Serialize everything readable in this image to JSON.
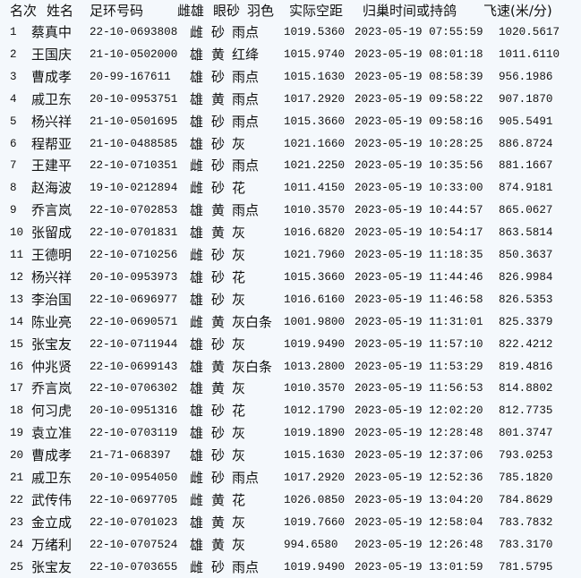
{
  "headers": {
    "rank": "名次",
    "name": "姓名",
    "ring": "足环号码",
    "sex": "雌雄",
    "eye": "眼砂",
    "color": "羽色",
    "distance": "实际空距",
    "time": "归巢时间或持鸽",
    "speed": "飞速(米/分)"
  },
  "rows": [
    [
      "1",
      "蔡真中",
      "22-10-0693808",
      "雌",
      "砂",
      "雨点",
      "1019.5360",
      "2023-05-19 07:55:59",
      "1020.5617"
    ],
    [
      "2",
      "王国庆",
      "21-10-0502000",
      "雄",
      "黄",
      "红绛",
      "1015.9740",
      "2023-05-19 08:01:18",
      "1011.6110"
    ],
    [
      "3",
      "曹成孝",
      "20-99-167611",
      "雄",
      "砂",
      "雨点",
      "1015.1630",
      "2023-05-19 08:58:39",
      "956.1986"
    ],
    [
      "4",
      "戚卫东",
      "20-10-0953751",
      "雄",
      "黄",
      "雨点",
      "1017.2920",
      "2023-05-19 09:58:22",
      "907.1870"
    ],
    [
      "5",
      "杨兴祥",
      "21-10-0501695",
      "雄",
      "砂",
      "雨点",
      "1015.3660",
      "2023-05-19 09:58:16",
      "905.5491"
    ],
    [
      "6",
      "程帮亚",
      "21-10-0488585",
      "雄",
      "砂",
      "灰",
      "1021.1660",
      "2023-05-19 10:28:25",
      "886.8724"
    ],
    [
      "7",
      "王建平",
      "22-10-0710351",
      "雌",
      "砂",
      "雨点",
      "1021.2250",
      "2023-05-19 10:35:56",
      "881.1667"
    ],
    [
      "8",
      "赵海波",
      "19-10-0212894",
      "雌",
      "砂",
      "花",
      "1011.4150",
      "2023-05-19 10:33:00",
      "874.9181"
    ],
    [
      "9",
      "乔言岚",
      "22-10-0702853",
      "雄",
      "黄",
      "雨点",
      "1010.3570",
      "2023-05-19 10:44:57",
      "865.0627"
    ],
    [
      "10",
      "张留成",
      "22-10-0701831",
      "雄",
      "黄",
      "灰",
      "1016.6820",
      "2023-05-19 10:54:17",
      "863.5814"
    ],
    [
      "11",
      "王德明",
      "22-10-0710256",
      "雌",
      "砂",
      "灰",
      "1021.7960",
      "2023-05-19 11:18:35",
      "850.3637"
    ],
    [
      "12",
      "杨兴祥",
      "20-10-0953973",
      "雄",
      "砂",
      "花",
      "1015.3660",
      "2023-05-19 11:44:46",
      "826.9984"
    ],
    [
      "13",
      "李治国",
      "22-10-0696977",
      "雄",
      "砂",
      "灰",
      "1016.6160",
      "2023-05-19 11:46:58",
      "826.5353"
    ],
    [
      "14",
      "陈业亮",
      "22-10-0690571",
      "雌",
      "黄",
      "灰白条",
      "1001.9800",
      "2023-05-19 11:31:01",
      "825.3379"
    ],
    [
      "15",
      "张宝友",
      "22-10-0711944",
      "雄",
      "砂",
      "灰",
      "1019.9490",
      "2023-05-19 11:57:10",
      "822.4212"
    ],
    [
      "16",
      "仲兆贤",
      "22-10-0699143",
      "雄",
      "黄",
      "灰白条",
      "1013.2800",
      "2023-05-19 11:53:29",
      "819.4816"
    ],
    [
      "17",
      "乔言岚",
      "22-10-0706302",
      "雄",
      "黄",
      "灰",
      "1010.3570",
      "2023-05-19 11:56:53",
      "814.8802"
    ],
    [
      "18",
      "何习虎",
      "20-10-0951316",
      "雄",
      "砂",
      "花",
      "1012.1790",
      "2023-05-19 12:02:20",
      "812.7735"
    ],
    [
      "19",
      "袁立准",
      "22-10-0703119",
      "雄",
      "砂",
      "灰",
      "1019.1890",
      "2023-05-19 12:28:48",
      "801.3747"
    ],
    [
      "20",
      "曹成孝",
      "21-71-068397",
      "雄",
      "砂",
      "灰",
      "1015.1630",
      "2023-05-19 12:37:06",
      "793.0253"
    ],
    [
      "21",
      "戚卫东",
      "20-10-0954050",
      "雌",
      "砂",
      "雨点",
      "1017.2920",
      "2023-05-19 12:52:36",
      "785.1820"
    ],
    [
      "22",
      "武传伟",
      "22-10-0697705",
      "雌",
      "黄",
      "花",
      "1026.0850",
      "2023-05-19 13:04:20",
      "784.8629"
    ],
    [
      "23",
      "金立成",
      "22-10-0701023",
      "雄",
      "黄",
      "灰",
      "1019.7660",
      "2023-05-19 12:58:04",
      "783.7832"
    ],
    [
      "24",
      "万绪利",
      "22-10-0707524",
      "雄",
      "黄",
      "灰",
      "994.6580",
      "2023-05-19 12:26:48",
      "783.3170"
    ],
    [
      "25",
      "张宝友",
      "22-10-0703655",
      "雌",
      "砂",
      "雨点",
      "1019.9490",
      "2023-05-19 13:01:59",
      "781.5795"
    ]
  ]
}
